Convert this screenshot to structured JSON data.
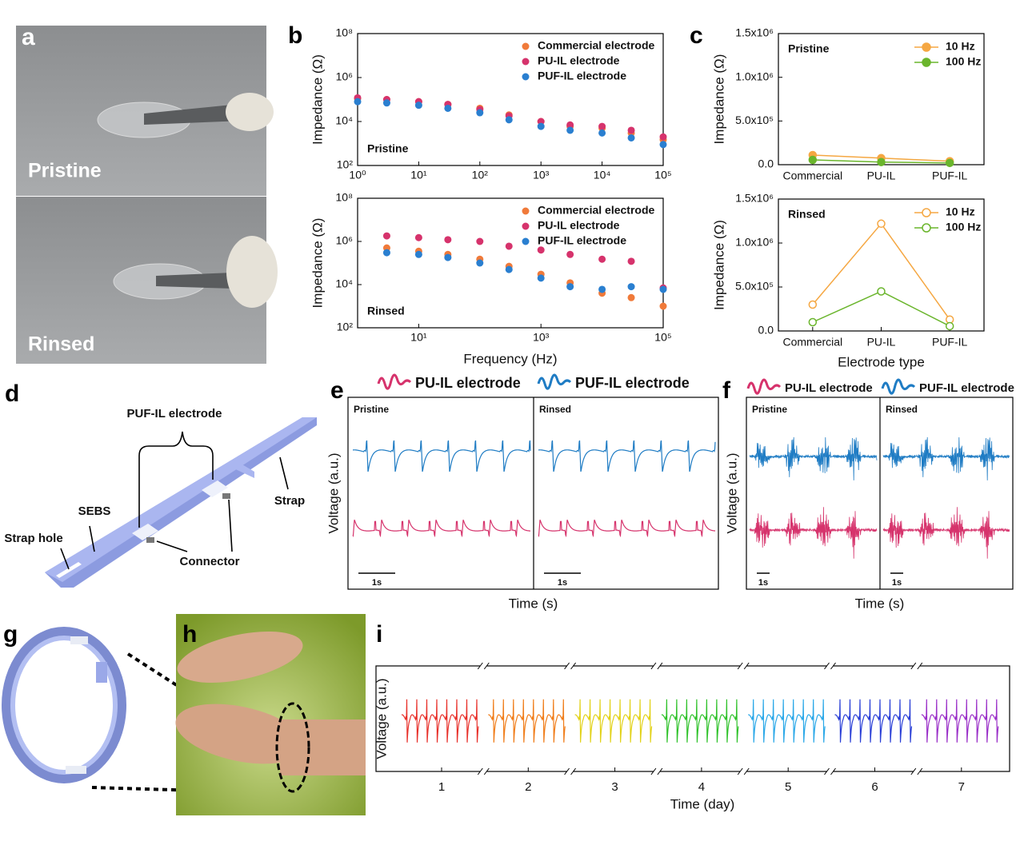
{
  "figure": {
    "panel_labels": [
      "a",
      "b",
      "c",
      "d",
      "e",
      "f",
      "g",
      "h",
      "i"
    ],
    "photo_a": {
      "labels": [
        "Pristine",
        "Rinsed"
      ]
    },
    "diagram_d": {
      "labels": [
        "PUF-IL electrode",
        "SEBS",
        "Strap hole",
        "Connector",
        "Strap"
      ]
    }
  },
  "chart_data": [
    {
      "type": "scatter",
      "annotation": "Pristine",
      "y_label": "Impedance (Ω)",
      "xlog": true,
      "ylog": true,
      "legend": "upper right",
      "xlim": [
        1,
        100000
      ],
      "xticks": [
        {
          "value": 1,
          "label": "10⁰"
        },
        {
          "value": 10,
          "label": "10¹"
        },
        {
          "value": 100,
          "label": "10²"
        },
        {
          "value": 1000,
          "label": "10³"
        },
        {
          "value": 10000,
          "label": "10⁴"
        },
        {
          "value": 100000,
          "label": "10⁵"
        }
      ],
      "ylim": [
        100,
        100000000
      ],
      "yticks": [
        {
          "value": 100,
          "label": "10²"
        },
        {
          "value": 10000,
          "label": "10⁴"
        },
        {
          "value": 1000000,
          "label": "10⁶"
        },
        {
          "value": 100000000,
          "label": "10⁸"
        }
      ],
      "x": [
        1,
        3,
        10,
        30,
        100,
        300,
        1000,
        3000,
        10000,
        30000,
        100000
      ],
      "series": [
        {
          "name": "Commercial electrode",
          "color": "#f07a3a",
          "values": [
            110000,
            100000,
            80000,
            60000,
            40000,
            20000,
            10000,
            6000,
            5000,
            3000,
            1500
          ]
        },
        {
          "name": "PU-IL electrode",
          "color": "#d6336c",
          "values": [
            120000,
            100000,
            80000,
            60000,
            35000,
            18000,
            10000,
            7000,
            6000,
            4000,
            2000
          ]
        },
        {
          "name": "PUF-IL electrode",
          "color": "#2a7fd0",
          "values": [
            80000,
            70000,
            55000,
            40000,
            25000,
            12000,
            6000,
            4000,
            3000,
            1800,
            900
          ]
        }
      ]
    },
    {
      "type": "scatter",
      "annotation": "Rinsed",
      "y_label": "Impedance (Ω)",
      "x_label": "Frequency (Hz)",
      "xlog": true,
      "ylog": true,
      "legend": "upper right",
      "xlim": [
        1,
        100000
      ],
      "xticks": [
        {
          "value": 10,
          "label": "10¹"
        },
        {
          "value": 1000,
          "label": "10³"
        },
        {
          "value": 100000,
          "label": "10⁵"
        }
      ],
      "ylim": [
        100,
        100000000
      ],
      "yticks": [
        {
          "value": 100,
          "label": "10²"
        },
        {
          "value": 10000,
          "label": "10⁴"
        },
        {
          "value": 1000000,
          "label": "10⁶"
        },
        {
          "value": 100000000,
          "label": "10⁸"
        }
      ],
      "x": [
        3,
        10,
        30,
        100,
        300,
        1000,
        3000,
        10000,
        30000,
        100000
      ],
      "series": [
        {
          "name": "Commercial electrode",
          "color": "#f07a3a",
          "values": [
            500000,
            350000,
            250000,
            150000,
            70000,
            30000,
            12000,
            4000,
            2500,
            1000
          ]
        },
        {
          "name": "PU-IL electrode",
          "color": "#d6336c",
          "values": [
            1800000,
            1500000,
            1200000,
            1000000,
            600000,
            400000,
            250000,
            150000,
            120000,
            7000
          ]
        },
        {
          "name": "PUF-IL electrode",
          "color": "#2a7fd0",
          "values": [
            300000,
            250000,
            180000,
            100000,
            50000,
            20000,
            8000,
            6000,
            8000,
            6000
          ]
        }
      ]
    },
    {
      "type": "line",
      "annotation": "Pristine",
      "y_label": "Impedance (Ω)",
      "markers": "filled",
      "legend": "upper right",
      "categories": [
        "Commercial",
        "PU-IL",
        "PUF-IL"
      ],
      "ylim": [
        0,
        1500000
      ],
      "yticks": [
        {
          "value": 0,
          "label": "0.0"
        },
        {
          "value": 500000,
          "label": "5.0x10⁵"
        },
        {
          "value": 1000000,
          "label": "1.0x10⁶"
        },
        {
          "value": 1500000,
          "label": "1.5x10⁶"
        }
      ],
      "series": [
        {
          "name": "10 Hz",
          "color": "#f5a742",
          "values": [
            110000,
            75000,
            40000
          ]
        },
        {
          "name": "100 Hz",
          "color": "#6ab52c",
          "values": [
            55000,
            30000,
            20000
          ]
        }
      ]
    },
    {
      "type": "line",
      "annotation": "Rinsed",
      "y_label": "Impedance (Ω)",
      "x_label": "Electrode type",
      "markers": "hollow",
      "legend": "upper right",
      "categories": [
        "Commercial",
        "PU-IL",
        "PUF-IL"
      ],
      "ylim": [
        0,
        1500000
      ],
      "yticks": [
        {
          "value": 0,
          "label": "0.0"
        },
        {
          "value": 500000,
          "label": "5.0x10⁵"
        },
        {
          "value": 1000000,
          "label": "1.0x10⁶"
        },
        {
          "value": 1500000,
          "label": "1.5x10⁶"
        }
      ],
      "series": [
        {
          "name": "10 Hz",
          "color": "#f5a742",
          "values": [
            300000,
            1220000,
            130000
          ]
        },
        {
          "name": "100 Hz",
          "color": "#6ab52c",
          "values": [
            100000,
            450000,
            55000
          ]
        }
      ]
    },
    {
      "type": "signal",
      "y_label": "Voltage (a.u.)",
      "x_label": "Time (s)",
      "segments": [
        "Pristine",
        "Rinsed"
      ],
      "scale_bar": "1s",
      "series": [
        {
          "name": "PU-IL electrode",
          "color": "#d6336c"
        },
        {
          "name": "PUF-IL electrode",
          "color": "#1f7cc4"
        }
      ]
    },
    {
      "type": "signal",
      "y_label": "Voltage (a.u.)",
      "x_label": "Time (s)",
      "segments": [
        "Pristine",
        "Rinsed"
      ],
      "scale_bar": "1s",
      "series": [
        {
          "name": "PU-IL electrode",
          "color": "#d6336c"
        },
        {
          "name": "PUF-IL electrode",
          "color": "#1f7cc4"
        }
      ]
    },
    {
      "type": "signal",
      "y_label": "Voltage (a.u.)",
      "x_label": "Time (day)",
      "categories": [
        "1",
        "2",
        "3",
        "4",
        "5",
        "6",
        "7"
      ],
      "colors": [
        "#e8302a",
        "#f07d1a",
        "#e2d21a",
        "#2fc22a",
        "#2aa8e8",
        "#2a3fd6",
        "#9a2fc8"
      ]
    }
  ]
}
